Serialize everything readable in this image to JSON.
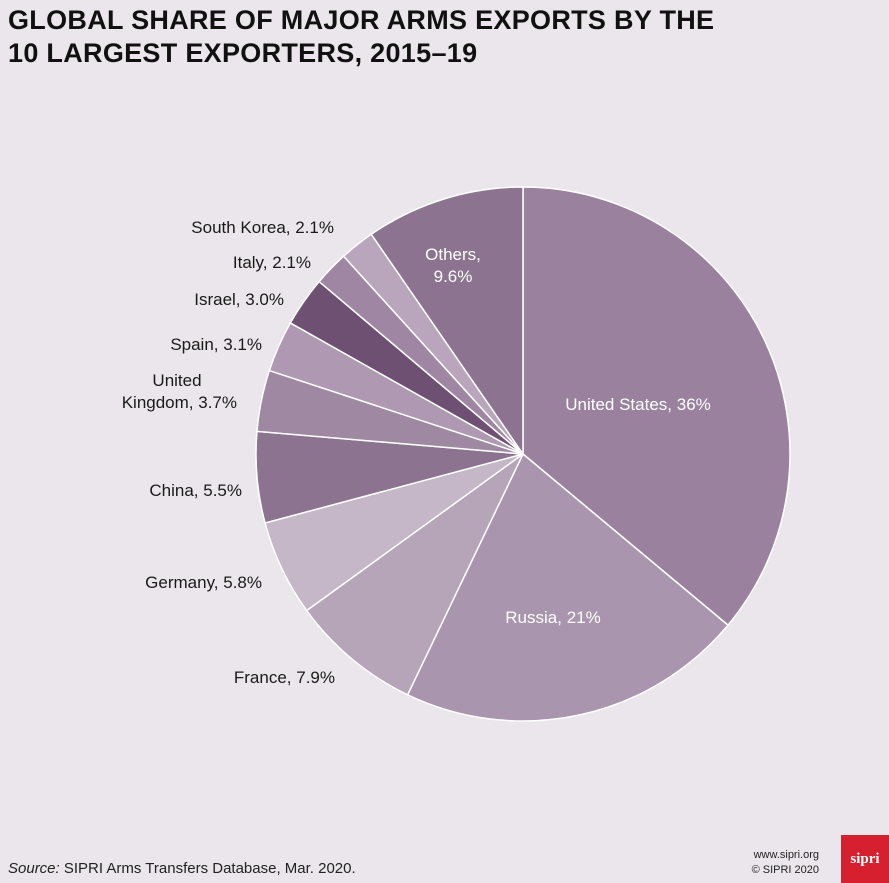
{
  "title_lines": [
    "GLOBAL SHARE OF MAJOR ARMS EXPORTS BY THE",
    "10 LARGEST EXPORTERS, 2015–19"
  ],
  "chart_data": {
    "type": "pie",
    "title": "GLOBAL SHARE OF MAJOR ARMS EXPORTS BY THE 10 LARGEST EXPORTERS, 2015–19",
    "slices": [
      {
        "label": "United States, 36%",
        "value": 36,
        "color": "#9a829f"
      },
      {
        "label": "Russia, 21%",
        "value": 21,
        "color": "#a995ad"
      },
      {
        "label": "France, 7.9%",
        "value": 7.9,
        "color": "#b6a4b9"
      },
      {
        "label": "Germany, 5.8%",
        "value": 5.8,
        "color": "#c5b6c8"
      },
      {
        "label": "China, 5.5%",
        "value": 5.5,
        "color": "#8c7390"
      },
      {
        "label": "United Kingdom, 3.7%",
        "value": 3.7,
        "color": "#9e88a2"
      },
      {
        "label": "Spain, 3.1%",
        "value": 3.1,
        "color": "#ae98b2"
      },
      {
        "label": "Israel, 3.0%",
        "value": 3.0,
        "color": "#6e5073"
      },
      {
        "label": "Italy, 2.1%",
        "value": 2.1,
        "color": "#9f87a3"
      },
      {
        "label": "South Korea, 2.1%",
        "value": 2.1,
        "color": "#b9a6bc"
      },
      {
        "label": "Others, 9.6%",
        "value": 9.6,
        "color": "#8c7490"
      }
    ]
  },
  "footer": {
    "source_label": "Source:",
    "source_text": " SIPRI Arms Transfers Database, Mar. 2020.",
    "site": "www.sipri.org",
    "copyright": "© SIPRI 2020",
    "logo": "sipri"
  }
}
